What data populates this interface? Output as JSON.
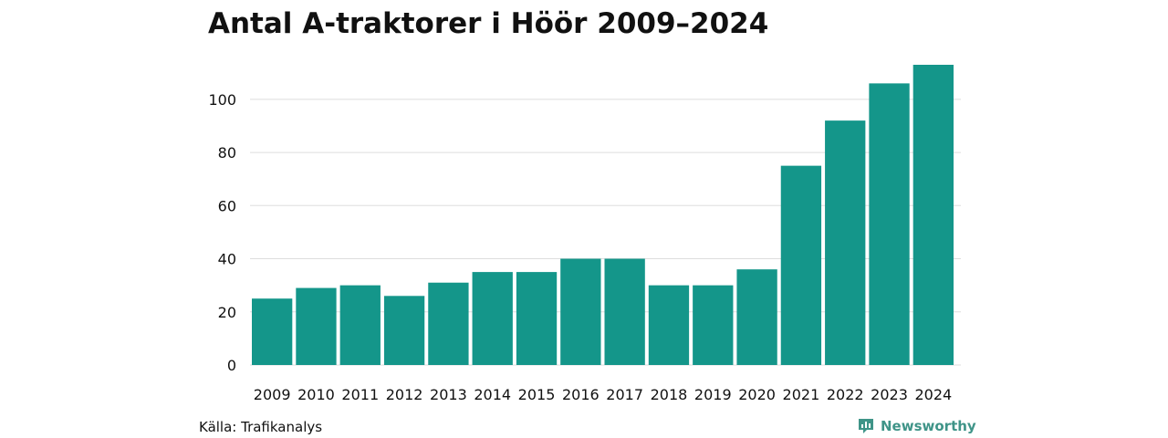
{
  "chart_data": {
    "type": "bar",
    "title": "Antal A-traktorer i Höör 2009–2024",
    "categories": [
      "2009",
      "2010",
      "2011",
      "2012",
      "2013",
      "2014",
      "2015",
      "2016",
      "2017",
      "2018",
      "2019",
      "2020",
      "2021",
      "2022",
      "2023",
      "2024"
    ],
    "values": [
      25,
      29,
      30,
      26,
      31,
      35,
      35,
      40,
      40,
      30,
      30,
      36,
      75,
      92,
      106,
      113
    ],
    "xlabel": "",
    "ylabel": "",
    "ylim": [
      0,
      113
    ],
    "yticks": [
      0,
      20,
      40,
      60,
      80,
      100
    ],
    "grid": true,
    "bar_color": "#14968a",
    "grid_color": "#dddddd"
  },
  "footer": {
    "source": "Källa: Trafikanalys",
    "brand": "Newsworthy",
    "brand_icon": "newsworthy-logo-icon",
    "brand_color": "#3f9488"
  }
}
